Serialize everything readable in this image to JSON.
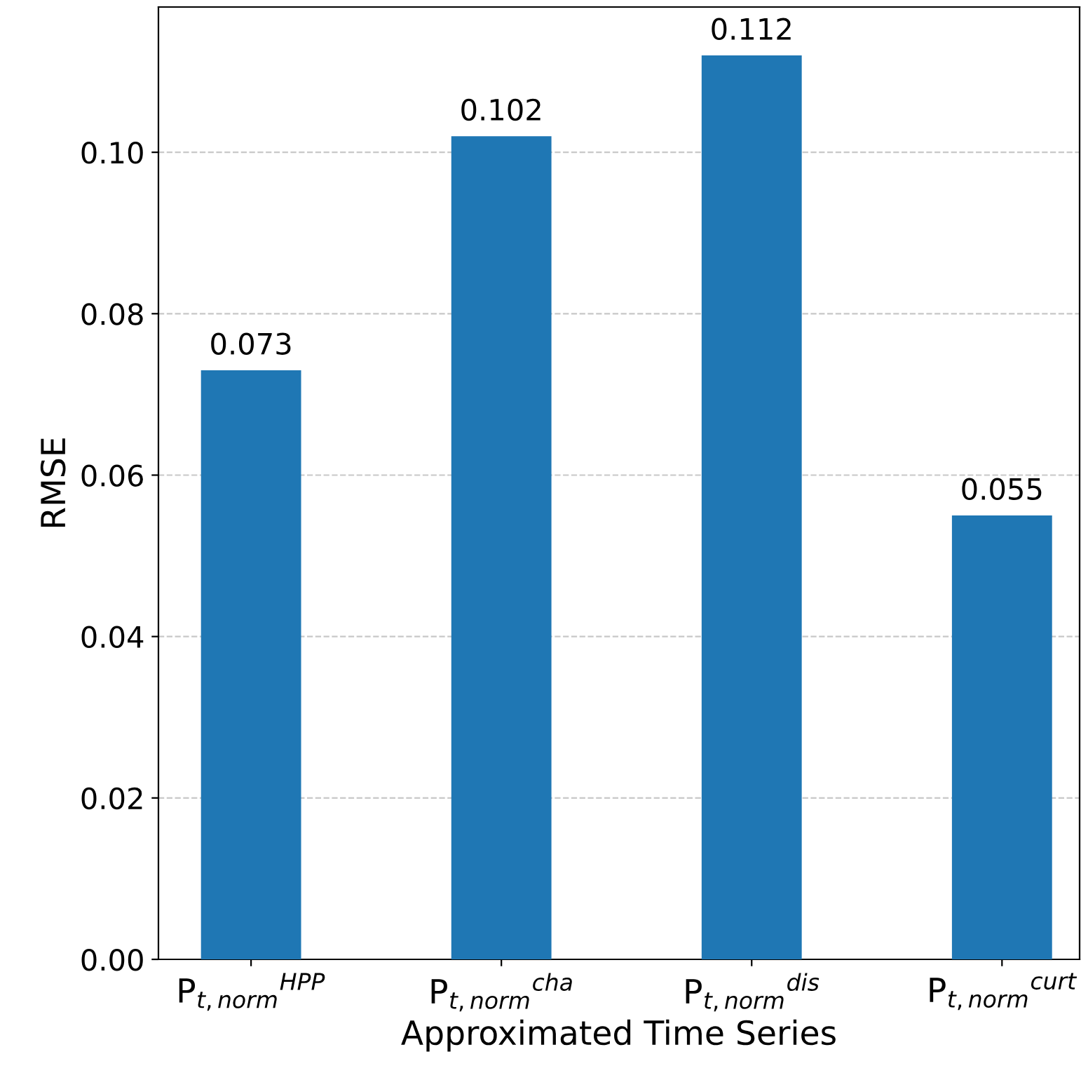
{
  "chart_data": {
    "type": "bar",
    "xlabel": "Approximated Time Series",
    "ylabel": "RMSE",
    "categories": [
      "P$_{t,norm}$$^{HPP}$",
      "P$_{t,norm}$$^{cha}$",
      "P$_{t,norm}$$^{dis}$",
      "P$_{t,norm}$$^{curt}$"
    ],
    "values": [
      0.073,
      0.102,
      0.112,
      0.055
    ],
    "color": "#1f77b4",
    "data_labels": true,
    "ylim": [
      0,
      0.118
    ],
    "yticks": [
      {
        "value": 0,
        "label": "0.00"
      },
      {
        "value": 0.02,
        "label": "0.02"
      },
      {
        "value": 0.04,
        "label": "0.04"
      },
      {
        "value": 0.06,
        "label": "0.06"
      },
      {
        "value": 0.08,
        "label": "0.08"
      },
      {
        "value": 0.1,
        "label": "0.10"
      }
    ],
    "grid": "y"
  }
}
